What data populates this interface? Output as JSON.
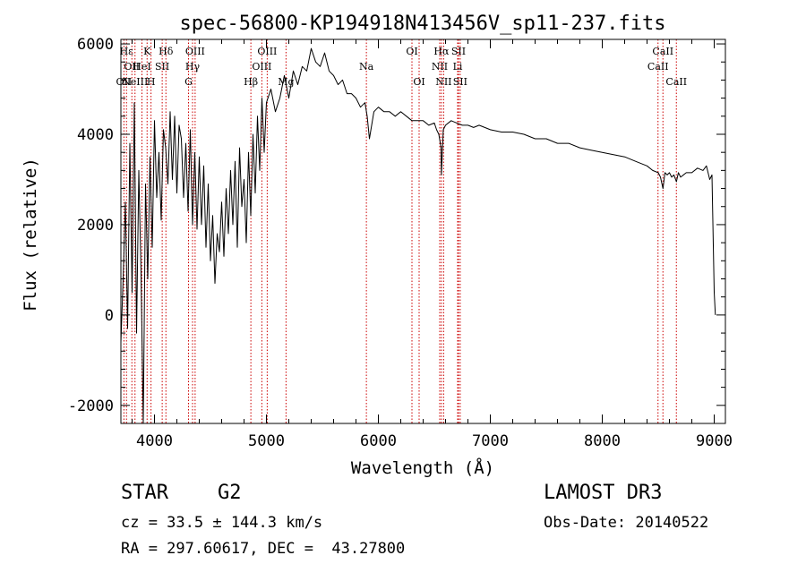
{
  "chart_data": {
    "type": "line",
    "title": "spec-56800-KP194918N413456V_sp11-237.fits",
    "xlabel": "Wavelength (Å)",
    "ylabel": "Flux (relative)",
    "xlim": [
      3700,
      9100
    ],
    "ylim": [
      -2400,
      6100
    ],
    "xticks": [
      4000,
      5000,
      6000,
      7000,
      8000,
      9000
    ],
    "yticks": [
      -2000,
      0,
      2000,
      4000,
      6000
    ],
    "grid": false,
    "series": [
      {
        "x": [
          3700,
          3720,
          3740,
          3760,
          3780,
          3800,
          3820,
          3840,
          3860,
          3880,
          3900,
          3920,
          3940,
          3960,
          3980,
          4000,
          4020,
          4040,
          4060,
          4080,
          4100,
          4120,
          4140,
          4160,
          4180,
          4200,
          4220,
          4240,
          4260,
          4280,
          4300,
          4320,
          4340,
          4360,
          4380,
          4400,
          4420,
          4440,
          4460,
          4480,
          4500,
          4520,
          4540,
          4560,
          4580,
          4600,
          4620,
          4640,
          4660,
          4680,
          4700,
          4720,
          4740,
          4760,
          4780,
          4800,
          4820,
          4840,
          4860,
          4880,
          4900,
          4920,
          4940,
          4960,
          4980,
          5000,
          5040,
          5080,
          5120,
          5160,
          5200,
          5240,
          5280,
          5320,
          5360,
          5400,
          5440,
          5480,
          5520,
          5560,
          5600,
          5640,
          5680,
          5720,
          5760,
          5800,
          5840,
          5880,
          5900,
          5920,
          5960,
          6000,
          6050,
          6100,
          6150,
          6200,
          6250,
          6300,
          6350,
          6400,
          6450,
          6500,
          6520,
          6540,
          6560,
          6563,
          6580,
          6600,
          6650,
          6700,
          6750,
          6800,
          6850,
          6900,
          6950,
          7000,
          7100,
          7200,
          7300,
          7400,
          7500,
          7600,
          7700,
          7800,
          7900,
          8000,
          8100,
          8200,
          8300,
          8400,
          8450,
          8500,
          8520,
          8542,
          8560,
          8580,
          8600,
          8620,
          8640,
          8662,
          8680,
          8700,
          8750,
          8800,
          8850,
          8900,
          8930,
          8960,
          8980,
          9000,
          9010
        ],
        "y": [
          -600,
          800,
          2500,
          -300,
          3800,
          500,
          4700,
          -400,
          3200,
          900,
          -2400,
          2900,
          800,
          3500,
          1500,
          4300,
          2600,
          3600,
          2100,
          4100,
          3700,
          2900,
          4500,
          3000,
          4400,
          2700,
          4200,
          3900,
          2600,
          3800,
          2300,
          4100,
          2000,
          3600,
          1900,
          3500,
          2000,
          3300,
          1500,
          2900,
          1200,
          2200,
          700,
          1800,
          1400,
          2500,
          1300,
          2800,
          1800,
          3200,
          2000,
          3400,
          1500,
          3700,
          2400,
          3000,
          1600,
          3600,
          2200,
          4000,
          2700,
          4400,
          3200,
          4800,
          3600,
          4700,
          5000,
          4500,
          4800,
          5300,
          4800,
          5400,
          5100,
          5500,
          5400,
          5900,
          5600,
          5500,
          5800,
          5400,
          5300,
          5100,
          5200,
          4900,
          4900,
          4800,
          4600,
          4700,
          4400,
          3900,
          4500,
          4600,
          4500,
          4500,
          4400,
          4500,
          4400,
          4300,
          4300,
          4300,
          4200,
          4250,
          4100,
          4000,
          3700,
          3100,
          4100,
          4200,
          4300,
          4250,
          4200,
          4200,
          4150,
          4200,
          4150,
          4100,
          4050,
          4050,
          4000,
          3900,
          3900,
          3800,
          3800,
          3700,
          3650,
          3600,
          3550,
          3500,
          3400,
          3300,
          3200,
          3150,
          3050,
          2800,
          3150,
          3100,
          3150,
          3050,
          3100,
          2950,
          3150,
          3050,
          3150,
          3150,
          3250,
          3200,
          3300,
          3000,
          3100,
          500,
          0
        ]
      }
    ],
    "line_markers": [
      {
        "wl": 3750,
        "label": "Hε",
        "row": 0
      },
      {
        "wl": 3798,
        "label": "OII",
        "row": 1
      },
      {
        "wl": 3727,
        "label": "OII",
        "row": 2
      },
      {
        "wl": 3826,
        "label": "NeIII",
        "row": 2
      },
      {
        "wl": 3888,
        "label": "HeI",
        "row": 1
      },
      {
        "wl": 3934,
        "label": "K",
        "row": 0
      },
      {
        "wl": 3969,
        "label": "H",
        "row": 2
      },
      {
        "wl": 4069,
        "label": "SII",
        "row": 1
      },
      {
        "wl": 4102,
        "label": "Hδ",
        "row": 0
      },
      {
        "wl": 4340,
        "label": "Hγ",
        "row": 1
      },
      {
        "wl": 4363,
        "label": "OIII",
        "row": 0
      },
      {
        "wl": 4304,
        "label": "G",
        "row": 2
      },
      {
        "wl": 4861,
        "label": "Hβ",
        "row": 2
      },
      {
        "wl": 4959,
        "label": "OIII",
        "row": 1
      },
      {
        "wl": 5007,
        "label": "OIII",
        "row": 0
      },
      {
        "wl": 5175,
        "label": "Mg",
        "row": 2
      },
      {
        "wl": 5893,
        "label": "Na",
        "row": 1
      },
      {
        "wl": 6300,
        "label": "OI",
        "row": 0
      },
      {
        "wl": 6364,
        "label": "OI",
        "row": 2
      },
      {
        "wl": 6548,
        "label": "NII",
        "row": 1
      },
      {
        "wl": 6563,
        "label": "Hα",
        "row": 0
      },
      {
        "wl": 6583,
        "label": "NII",
        "row": 2
      },
      {
        "wl": 6708,
        "label": "Li",
        "row": 1
      },
      {
        "wl": 6716,
        "label": "SII",
        "row": 0
      },
      {
        "wl": 6731,
        "label": "SII",
        "row": 2
      },
      {
        "wl": 8498,
        "label": "CaII",
        "row": 1
      },
      {
        "wl": 8542,
        "label": "CaII",
        "row": 0
      },
      {
        "wl": 8662,
        "label": "CaII",
        "row": 2
      }
    ]
  },
  "info": {
    "class": "STAR",
    "subclass": "G2",
    "survey": "LAMOST DR3",
    "cz": "cz = 33.5 ± 144.3 km/s",
    "obs_date": "Obs-Date: 20140522",
    "radec": "RA = 297.60617, DEC =  43.27800"
  },
  "colors": {
    "spectrum": "#000000",
    "markers": "#cc0000",
    "axes": "#000000"
  }
}
